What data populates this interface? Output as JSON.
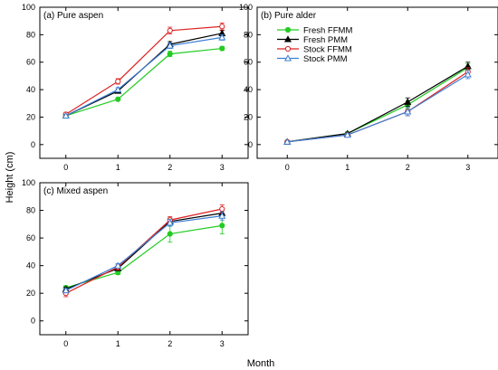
{
  "figure": {
    "ylabel": "Height (cm)",
    "xlabel": "Month"
  },
  "legend": {
    "placement": "top-left of panel (b)",
    "entries": [
      {
        "label": "Fresh FFMM",
        "color": "#22cc22",
        "marker": "filled-circle"
      },
      {
        "label": "Fresh PMM",
        "color": "#000000",
        "marker": "filled-triangle"
      },
      {
        "label": "Stock FFMM",
        "color": "#dd2222",
        "marker": "open-circle"
      },
      {
        "label": "Stock PMM",
        "color": "#3b7fd4",
        "marker": "open-triangle"
      }
    ]
  },
  "chart_data": [
    {
      "type": "line",
      "title": "(a) Pure aspen",
      "x": [
        0,
        1,
        2,
        3
      ],
      "xlim": [
        -0.5,
        3.5
      ],
      "ylim": [
        -10,
        100
      ],
      "yticks": [
        0,
        20,
        40,
        60,
        80,
        100
      ],
      "grid": false,
      "series": [
        {
          "name": "Fresh FFMM",
          "values": [
            21,
            33,
            66,
            70
          ],
          "errors": [
            1,
            1,
            2,
            1.5
          ]
        },
        {
          "name": "Fresh PMM",
          "values": [
            21,
            39,
            73,
            81
          ],
          "errors": [
            1,
            1.5,
            2,
            2
          ]
        },
        {
          "name": "Stock FFMM",
          "values": [
            22,
            46,
            83,
            86
          ],
          "errors": [
            1.5,
            2,
            2.5,
            2.5
          ]
        },
        {
          "name": "Stock PMM",
          "values": [
            21,
            40,
            72,
            78
          ],
          "errors": [
            1,
            1.5,
            2,
            2
          ]
        }
      ]
    },
    {
      "type": "line",
      "title": "(b) Pure alder",
      "x": [
        0,
        1,
        2,
        3
      ],
      "xlim": [
        -0.5,
        3.5
      ],
      "ylim": [
        -10,
        100
      ],
      "yticks": [
        0,
        20,
        40,
        60,
        80,
        100
      ],
      "grid": false,
      "series": [
        {
          "name": "Fresh FFMM",
          "values": [
            2,
            8,
            29,
            56
          ],
          "errors": [
            0.5,
            1,
            3,
            3
          ]
        },
        {
          "name": "Fresh PMM",
          "values": [
            2,
            8,
            31,
            57
          ],
          "errors": [
            0.5,
            1,
            3,
            3
          ]
        },
        {
          "name": "Stock FFMM",
          "values": [
            2,
            7,
            24,
            53
          ],
          "errors": [
            0.5,
            1,
            3,
            3
          ]
        },
        {
          "name": "Stock PMM",
          "values": [
            2,
            7,
            24,
            51
          ],
          "errors": [
            0.5,
            1,
            3,
            3
          ]
        }
      ]
    },
    {
      "type": "line",
      "title": "(c) Mixed aspen",
      "x": [
        0,
        1,
        2,
        3
      ],
      "xlim": [
        -0.5,
        3.5
      ],
      "ylim": [
        -10,
        100
      ],
      "yticks": [
        0,
        20,
        40,
        60,
        80,
        100
      ],
      "grid": false,
      "series": [
        {
          "name": "Fresh FFMM",
          "values": [
            24,
            35,
            63,
            69
          ],
          "errors": [
            1.5,
            1.5,
            6,
            6
          ]
        },
        {
          "name": "Fresh PMM",
          "values": [
            23,
            38,
            72,
            78
          ],
          "errors": [
            1.5,
            1.5,
            2.5,
            3
          ]
        },
        {
          "name": "Stock FFMM",
          "values": [
            20,
            39,
            73,
            81
          ],
          "errors": [
            2.5,
            2,
            2.5,
            3
          ]
        },
        {
          "name": "Stock PMM",
          "values": [
            22,
            40,
            71,
            76
          ],
          "errors": [
            1.5,
            1.5,
            2.5,
            3
          ]
        }
      ]
    }
  ]
}
